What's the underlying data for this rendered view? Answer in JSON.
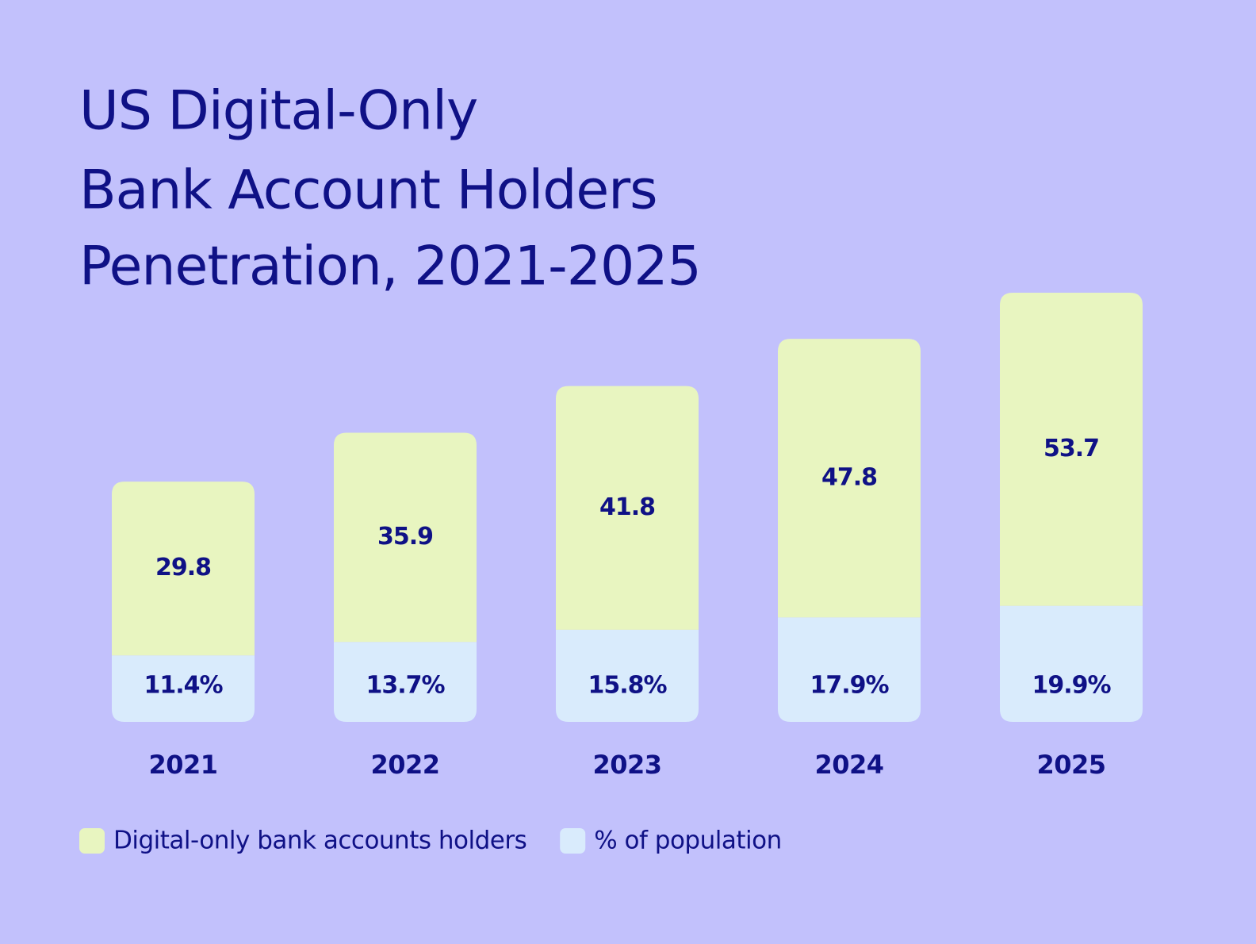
{
  "chart_data": {
    "type": "stacked-bar",
    "title": [
      "US Digital-Only",
      "Bank Account Holders",
      "Penetration, 2021-2025"
    ],
    "categories": [
      "2021",
      "2022",
      "2023",
      "2024",
      "2025"
    ],
    "series": [
      {
        "name": "% of population",
        "color": "#d9ebfc",
        "values": [
          11.4,
          13.7,
          15.8,
          17.9,
          19.9
        ],
        "value_labels": [
          "11.4%",
          "13.7%",
          "15.8%",
          "17.9%",
          "19.9%"
        ]
      },
      {
        "name": "Digital-only bank accounts holders",
        "color": "#e8f5c0",
        "values": [
          29.8,
          35.9,
          41.8,
          47.8,
          53.7
        ]
      }
    ],
    "legend_order": [
      1,
      0
    ]
  }
}
